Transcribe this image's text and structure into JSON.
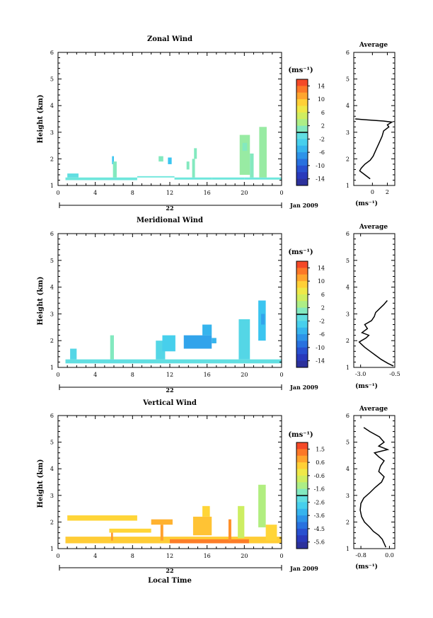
{
  "panels": [
    {
      "id": "zonal",
      "title": "Zonal Wind",
      "ylabel": "Height (km)",
      "unit_label": "(ms⁻¹)",
      "avg_title": "Average",
      "date_label": "22",
      "date_right": "Jan 2009",
      "colorbar_ticks": [
        "14",
        "10",
        "6",
        "2",
        "-2",
        "-6",
        "-10",
        "-14"
      ],
      "colorbar_range": [
        -16,
        16
      ],
      "avg_xticks": [
        "0",
        "2"
      ],
      "avg_xlim": [
        -2.5,
        3.0
      ],
      "avg_xlabel": "(ms⁻¹)",
      "avg_profile": [
        [
          1.25,
          -0.3
        ],
        [
          1.4,
          -1.0
        ],
        [
          1.55,
          -1.7
        ],
        [
          1.65,
          -1.5
        ],
        [
          1.8,
          -1.0
        ],
        [
          1.95,
          -0.3
        ],
        [
          2.1,
          0.1
        ],
        [
          2.35,
          0.5
        ],
        [
          2.6,
          0.9
        ],
        [
          2.85,
          1.3
        ],
        [
          3.05,
          1.5
        ],
        [
          3.2,
          2.2
        ],
        [
          3.28,
          2.0
        ],
        [
          3.38,
          2.6
        ],
        [
          3.42,
          1.5
        ],
        [
          3.46,
          -0.5
        ],
        [
          3.5,
          -2.3
        ]
      ]
    },
    {
      "id": "meridional",
      "title": "Meridional Wind",
      "ylabel": "Height (km)",
      "unit_label": "(ms⁻¹)",
      "avg_title": "Average",
      "date_label": "22",
      "date_right": "Jan 2009",
      "colorbar_ticks": [
        "14",
        "10",
        "6",
        "2",
        "-2",
        "-6",
        "-10",
        "-14"
      ],
      "colorbar_range": [
        -16,
        16
      ],
      "avg_xticks": [
        "-3.0",
        "-0.5"
      ],
      "avg_xlim": [
        -3.5,
        -0.5
      ],
      "avg_xlabel": "(ms⁻¹)",
      "avg_profile": [
        [
          1.05,
          -0.6
        ],
        [
          1.15,
          -1.0
        ],
        [
          1.3,
          -1.5
        ],
        [
          1.45,
          -1.9
        ],
        [
          1.6,
          -2.3
        ],
        [
          1.75,
          -2.7
        ],
        [
          1.85,
          -2.9
        ],
        [
          1.95,
          -3.1
        ],
        [
          2.1,
          -2.6
        ],
        [
          2.2,
          -2.4
        ],
        [
          2.3,
          -2.9
        ],
        [
          2.45,
          -2.5
        ],
        [
          2.6,
          -2.7
        ],
        [
          2.75,
          -2.2
        ],
        [
          2.9,
          -2.0
        ],
        [
          3.05,
          -1.9
        ],
        [
          3.2,
          -1.6
        ],
        [
          3.35,
          -1.3
        ],
        [
          3.5,
          -1.05
        ]
      ]
    },
    {
      "id": "vertical",
      "title": "Vertical Wind",
      "ylabel": "Height (km)",
      "unit_label": "(ms⁻¹)",
      "avg_title": "Average",
      "date_label": "22",
      "date_right": "Jan 2009",
      "xlabel": "Local Time",
      "colorbar_ticks": [
        "1.5",
        "0.6",
        "-0.6",
        "-1.6",
        "-2.6",
        "-3.6",
        "-4.5",
        "-5.6"
      ],
      "colorbar_range": [
        -6,
        2
      ],
      "avg_xticks": [
        "-0.8",
        "0.0"
      ],
      "avg_xlim": [
        -1.0,
        0.15
      ],
      "avg_xlabel": "(ms⁻¹)",
      "avg_profile": [
        [
          1.05,
          -0.1
        ],
        [
          1.2,
          -0.15
        ],
        [
          1.35,
          -0.2
        ],
        [
          1.5,
          -0.3
        ],
        [
          1.65,
          -0.45
        ],
        [
          1.8,
          -0.55
        ],
        [
          2.0,
          -0.7
        ],
        [
          2.2,
          -0.78
        ],
        [
          2.45,
          -0.82
        ],
        [
          2.7,
          -0.8
        ],
        [
          2.9,
          -0.72
        ],
        [
          3.1,
          -0.55
        ],
        [
          3.3,
          -0.4
        ],
        [
          3.5,
          -0.22
        ],
        [
          3.7,
          -0.15
        ],
        [
          3.9,
          -0.3
        ],
        [
          4.1,
          -0.25
        ],
        [
          4.3,
          -0.15
        ],
        [
          4.45,
          -0.3
        ],
        [
          4.6,
          -0.42
        ],
        [
          4.72,
          -0.05
        ],
        [
          4.85,
          -0.3
        ],
        [
          5.0,
          -0.15
        ],
        [
          5.2,
          -0.28
        ],
        [
          5.4,
          -0.55
        ],
        [
          5.55,
          -0.72
        ]
      ]
    }
  ],
  "shared": {
    "ytick_labels": [
      "1",
      "2",
      "3",
      "4",
      "5",
      "6"
    ],
    "xtick_labels": [
      "0",
      "4",
      "8",
      "12",
      "16",
      "20",
      "0"
    ]
  },
  "chart_data": [
    {
      "type": "heatmap",
      "title": "Zonal Wind",
      "xlabel": "",
      "ylabel": "Height (km)",
      "xlim": [
        0,
        24
      ],
      "ylim": [
        1,
        6
      ],
      "colorbar_label": "(ms⁻¹)",
      "cells": [
        {
          "t0": 0.8,
          "t1": 8.5,
          "h0": 1.2,
          "h1": 1.3,
          "v": 0
        },
        {
          "t0": 1.0,
          "t1": 2.2,
          "h0": 1.3,
          "h1": 1.45,
          "v": -1
        },
        {
          "t0": 8.5,
          "t1": 12.5,
          "h0": 1.3,
          "h1": 1.35,
          "v": 0
        },
        {
          "t0": 12.5,
          "t1": 16.5,
          "h0": 1.22,
          "h1": 1.3,
          "v": 0
        },
        {
          "t0": 16.5,
          "t1": 20.0,
          "h0": 1.22,
          "h1": 1.3,
          "v": 0
        },
        {
          "t0": 20.0,
          "t1": 24.0,
          "h0": 1.22,
          "h1": 1.3,
          "v": 0
        },
        {
          "t0": 5.8,
          "t1": 6.0,
          "h0": 1.8,
          "h1": 2.1,
          "v": -4
        },
        {
          "t0": 5.9,
          "t1": 6.3,
          "h0": 1.3,
          "h1": 1.9,
          "v": 1
        },
        {
          "t0": 10.8,
          "t1": 11.3,
          "h0": 1.9,
          "h1": 2.1,
          "v": 1
        },
        {
          "t0": 11.8,
          "t1": 12.2,
          "h0": 1.8,
          "h1": 2.05,
          "v": -4
        },
        {
          "t0": 14.4,
          "t1": 14.7,
          "h0": 1.3,
          "h1": 2.0,
          "v": 1
        },
        {
          "t0": 14.6,
          "t1": 14.9,
          "h0": 2.0,
          "h1": 2.4,
          "v": 1
        },
        {
          "t0": 13.8,
          "t1": 14.1,
          "h0": 1.6,
          "h1": 1.9,
          "v": 1
        },
        {
          "t0": 19.5,
          "t1": 20.6,
          "h0": 1.4,
          "h1": 2.9,
          "v": 2
        },
        {
          "t0": 20.6,
          "t1": 21.0,
          "h0": 1.3,
          "h1": 2.2,
          "v": 1
        },
        {
          "t0": 21.6,
          "t1": 22.4,
          "h0": 1.3,
          "h1": 3.2,
          "v": 2
        },
        {
          "t0": 19.8,
          "t1": 20.3,
          "h0": 2.3,
          "h1": 2.6,
          "v": 1
        }
      ]
    },
    {
      "type": "heatmap",
      "title": "Meridional Wind",
      "xlabel": "",
      "ylabel": "Height (km)",
      "xlim": [
        0,
        24
      ],
      "ylim": [
        1,
        6
      ],
      "colorbar_label": "(ms⁻¹)",
      "cells": [
        {
          "t0": 0.8,
          "t1": 24.0,
          "h0": 1.15,
          "h1": 1.3,
          "v": -1
        },
        {
          "t0": 1.3,
          "t1": 2.0,
          "h0": 1.3,
          "h1": 1.7,
          "v": -2
        },
        {
          "t0": 5.6,
          "t1": 6.0,
          "h0": 1.3,
          "h1": 2.2,
          "v": 1
        },
        {
          "t0": 10.5,
          "t1": 11.5,
          "h0": 1.3,
          "h1": 2.0,
          "v": -2
        },
        {
          "t0": 11.2,
          "t1": 12.6,
          "h0": 1.6,
          "h1": 2.2,
          "v": -3
        },
        {
          "t0": 13.5,
          "t1": 16.5,
          "h0": 1.7,
          "h1": 2.2,
          "v": -6
        },
        {
          "t0": 15.5,
          "t1": 16.5,
          "h0": 2.2,
          "h1": 2.6,
          "v": -5
        },
        {
          "t0": 16.5,
          "t1": 17.0,
          "h0": 1.9,
          "h1": 2.1,
          "v": -5
        },
        {
          "t0": 19.4,
          "t1": 20.6,
          "h0": 1.3,
          "h1": 2.8,
          "v": -2
        },
        {
          "t0": 21.5,
          "t1": 22.3,
          "h0": 2.0,
          "h1": 3.5,
          "v": -4
        },
        {
          "t0": 21.8,
          "t1": 22.2,
          "h0": 2.6,
          "h1": 3.0,
          "v": -6
        }
      ]
    },
    {
      "type": "heatmap",
      "title": "Vertical Wind",
      "xlabel": "Local Time",
      "ylabel": "Height (km)",
      "xlim": [
        0,
        24
      ],
      "ylim": [
        1,
        6
      ],
      "colorbar_label": "(ms⁻¹)",
      "cells": [
        {
          "t0": 0.8,
          "t1": 24.0,
          "h0": 1.2,
          "h1": 1.45,
          "v": 0.3
        },
        {
          "t0": 1.0,
          "t1": 8.5,
          "h0": 2.05,
          "h1": 2.25,
          "v": 0.2
        },
        {
          "t0": 5.5,
          "t1": 10.0,
          "h0": 1.6,
          "h1": 1.75,
          "v": 0.2
        },
        {
          "t0": 5.7,
          "t1": 5.9,
          "h0": 1.3,
          "h1": 1.6,
          "v": 0.9
        },
        {
          "t0": 10.0,
          "t1": 12.3,
          "h0": 1.9,
          "h1": 2.1,
          "v": 0.6
        },
        {
          "t0": 11.0,
          "t1": 11.3,
          "h0": 1.3,
          "h1": 1.9,
          "v": 0.8
        },
        {
          "t0": 12.0,
          "t1": 20.5,
          "h0": 1.2,
          "h1": 1.35,
          "v": 1.2
        },
        {
          "t0": 14.5,
          "t1": 16.5,
          "h0": 1.5,
          "h1": 2.2,
          "v": 0.4
        },
        {
          "t0": 15.5,
          "t1": 16.3,
          "h0": 2.2,
          "h1": 2.6,
          "v": 0.2
        },
        {
          "t0": 18.3,
          "t1": 18.6,
          "h0": 1.3,
          "h1": 2.1,
          "v": 1.0
        },
        {
          "t0": 19.3,
          "t1": 20.0,
          "h0": 1.4,
          "h1": 2.6,
          "v": -0.8
        },
        {
          "t0": 21.5,
          "t1": 22.3,
          "h0": 1.8,
          "h1": 3.4,
          "v": -1.2
        },
        {
          "t0": 22.3,
          "t1": 23.5,
          "h0": 1.3,
          "h1": 1.9,
          "v": 0.2
        }
      ]
    },
    {
      "type": "line",
      "title": "Average",
      "xlabel": "(ms⁻¹)",
      "ylabel": "Height (km)",
      "xlim": [
        -2.5,
        3.0
      ],
      "ylim": [
        1,
        6
      ],
      "series": [
        {
          "x": [
            -0.3,
            -1.0,
            -1.7,
            -1.5,
            -1.0,
            -0.3,
            0.1,
            0.5,
            0.9,
            1.3,
            1.5,
            2.2,
            2.0,
            2.6,
            1.5,
            -0.5,
            -2.3
          ],
          "y": [
            1.25,
            1.4,
            1.55,
            1.65,
            1.8,
            1.95,
            2.1,
            2.35,
            2.6,
            2.85,
            3.05,
            3.2,
            3.28,
            3.38,
            3.42,
            3.46,
            3.5
          ]
        }
      ]
    },
    {
      "type": "line",
      "title": "Average",
      "xlabel": "(ms⁻¹)",
      "ylabel": "Height (km)",
      "xlim": [
        -3.5,
        -0.5
      ],
      "ylim": [
        1,
        6
      ],
      "series": [
        {
          "x": [
            -0.6,
            -1.0,
            -1.5,
            -1.9,
            -2.3,
            -2.7,
            -2.9,
            -3.1,
            -2.6,
            -2.4,
            -2.9,
            -2.5,
            -2.7,
            -2.2,
            -2.0,
            -1.9,
            -1.6,
            -1.3,
            -1.05
          ],
          "y": [
            1.05,
            1.15,
            1.3,
            1.45,
            1.6,
            1.75,
            1.85,
            1.95,
            2.1,
            2.2,
            2.3,
            2.45,
            2.6,
            2.75,
            2.9,
            3.05,
            3.2,
            3.35,
            3.5
          ]
        }
      ]
    },
    {
      "type": "line",
      "title": "Average",
      "xlabel": "(ms⁻¹)",
      "ylabel": "Height (km)",
      "xlim": [
        -1.0,
        0.15
      ],
      "ylim": [
        1,
        6
      ],
      "series": [
        {
          "x": [
            -0.1,
            -0.15,
            -0.2,
            -0.3,
            -0.45,
            -0.55,
            -0.7,
            -0.78,
            -0.82,
            -0.8,
            -0.72,
            -0.55,
            -0.4,
            -0.22,
            -0.15,
            -0.3,
            -0.25,
            -0.15,
            -0.3,
            -0.42,
            -0.05,
            -0.3,
            -0.15,
            -0.28,
            -0.55,
            -0.72
          ],
          "y": [
            1.05,
            1.2,
            1.35,
            1.5,
            1.65,
            1.8,
            2.0,
            2.2,
            2.45,
            2.7,
            2.9,
            3.1,
            3.3,
            3.5,
            3.7,
            3.9,
            4.1,
            4.3,
            4.45,
            4.6,
            4.72,
            4.85,
            5.0,
            5.2,
            5.4,
            5.55
          ]
        }
      ]
    }
  ]
}
